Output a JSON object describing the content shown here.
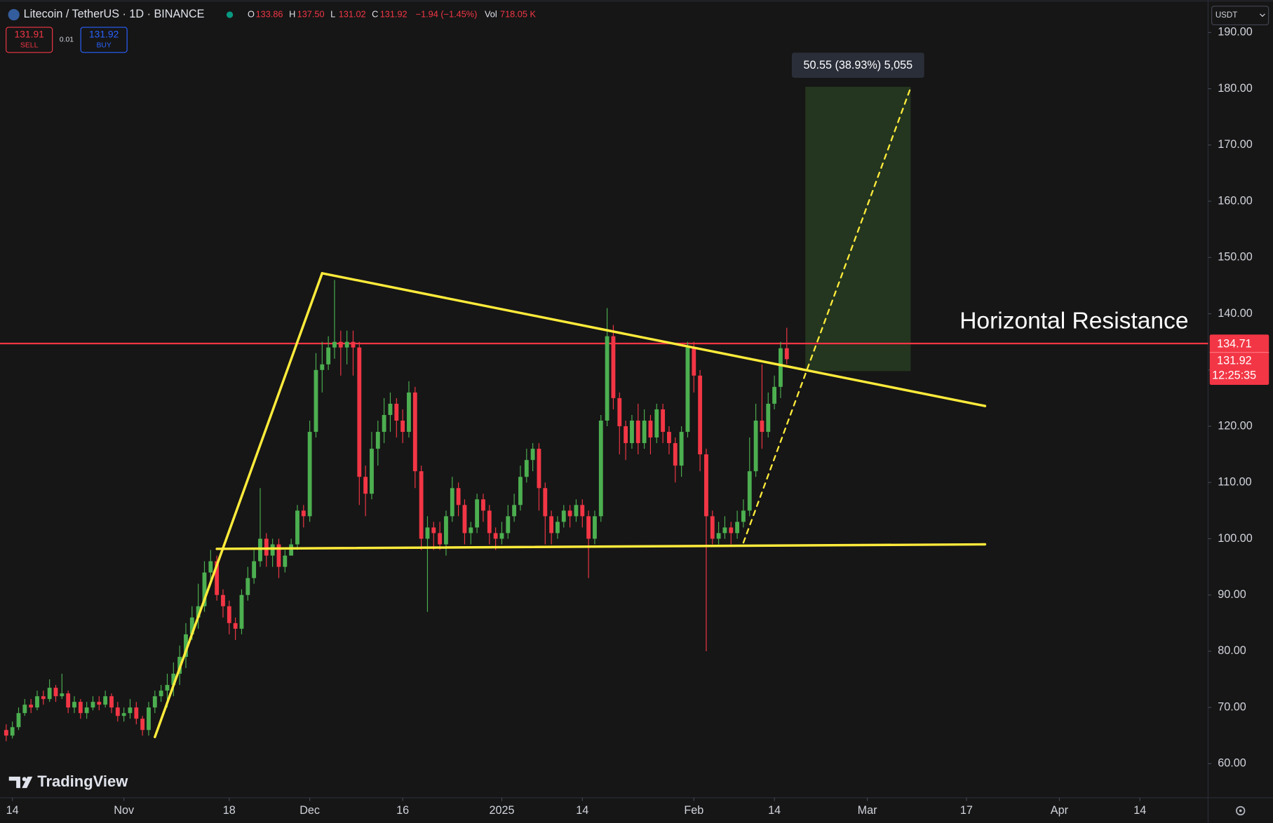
{
  "header": {
    "symbol": "Litecoin / TetherUS · 1D · BINANCE",
    "legend": [
      {
        "key": "O",
        "value": "133.86"
      },
      {
        "key": "H",
        "value": "137.50"
      },
      {
        "key": "L",
        "value": "131.02"
      },
      {
        "key": "C",
        "value": "131.92"
      }
    ],
    "change": "−1.94 (−1.45%)",
    "volume_key": "Vol",
    "volume": "718.05 K"
  },
  "trade": {
    "sell_price": "131.91",
    "sell": "SELL",
    "spread": "0.01",
    "buy_price": "131.92",
    "buy": "BUY"
  },
  "currency": "USDT",
  "countdown": "12:25:35",
  "logo": "TradingView",
  "chart_data": {
    "type": "candlestick",
    "x": [
      "2024-10-13",
      "2024-10-14",
      "2024-10-15",
      "2024-10-16",
      "2024-10-17",
      "2024-10-18",
      "2024-10-19",
      "2024-10-20",
      "2024-10-21",
      "2024-10-22",
      "2024-10-23",
      "2024-10-24",
      "2024-10-25",
      "2024-10-26",
      "2024-10-27",
      "2024-10-28",
      "2024-10-29",
      "2024-10-30",
      "2024-10-31",
      "2024-11-01",
      "2024-11-02",
      "2024-11-03",
      "2024-11-04",
      "2024-11-05",
      "2024-11-06",
      "2024-11-07",
      "2024-11-08",
      "2024-11-09",
      "2024-11-10",
      "2024-11-11",
      "2024-11-12",
      "2024-11-13",
      "2024-11-14",
      "2024-11-15",
      "2024-11-16",
      "2024-11-17",
      "2024-11-18",
      "2024-11-19",
      "2024-11-20",
      "2024-11-21",
      "2024-11-22",
      "2024-11-23",
      "2024-11-24",
      "2024-11-25",
      "2024-11-26",
      "2024-11-27",
      "2024-11-28",
      "2024-11-29",
      "2024-11-30",
      "2024-12-01",
      "2024-12-02",
      "2024-12-03",
      "2024-12-04",
      "2024-12-05",
      "2024-12-06",
      "2024-12-07",
      "2024-12-08",
      "2024-12-09",
      "2024-12-10",
      "2024-12-11",
      "2024-12-12",
      "2024-12-13",
      "2024-12-14",
      "2024-12-15",
      "2024-12-16",
      "2024-12-17",
      "2024-12-18",
      "2024-12-19",
      "2024-12-20",
      "2024-12-21",
      "2024-12-22",
      "2024-12-23",
      "2024-12-24",
      "2024-12-25",
      "2024-12-26",
      "2024-12-27",
      "2024-12-28",
      "2024-12-29",
      "2024-12-30",
      "2024-12-31",
      "2025-01-01",
      "2025-01-02",
      "2025-01-03",
      "2025-01-04",
      "2025-01-05",
      "2025-01-06",
      "2025-01-07",
      "2025-01-08",
      "2025-01-09",
      "2025-01-10",
      "2025-01-11",
      "2025-01-12",
      "2025-01-13",
      "2025-01-14",
      "2025-01-15",
      "2025-01-16",
      "2025-01-17",
      "2025-01-18",
      "2025-01-19",
      "2025-01-20",
      "2025-01-21",
      "2025-01-22",
      "2025-01-23",
      "2025-01-24",
      "2025-01-25",
      "2025-01-26",
      "2025-01-27",
      "2025-01-28",
      "2025-01-29",
      "2025-01-30",
      "2025-01-31",
      "2025-02-01",
      "2025-02-02",
      "2025-02-03",
      "2025-02-04",
      "2025-02-05",
      "2025-02-06",
      "2025-02-07",
      "2025-02-08",
      "2025-02-09",
      "2025-02-10",
      "2025-02-11",
      "2025-02-12",
      "2025-02-13",
      "2025-02-14",
      "2025-02-15",
      "2025-02-16"
    ],
    "open": [
      66,
      65,
      66.5,
      69,
      70.5,
      70,
      72,
      71.5,
      73.5,
      72,
      72.5,
      70,
      71,
      69,
      70,
      71,
      70.5,
      72,
      70,
      68.5,
      69,
      70,
      68,
      66,
      70,
      72,
      73,
      74,
      76,
      79,
      83,
      86,
      88,
      94,
      96,
      90,
      88,
      85,
      84,
      90,
      93,
      96,
      100,
      97,
      99,
      95,
      97,
      99,
      105,
      104,
      119,
      130,
      131,
      134,
      135,
      134,
      135,
      134,
      111,
      108,
      116,
      119,
      122,
      124,
      121,
      119,
      126,
      112,
      100,
      102,
      101,
      99,
      104,
      109,
      106,
      101,
      102,
      107,
      105,
      101,
      100,
      101,
      104,
      106,
      111,
      114,
      116,
      109,
      104,
      101,
      103,
      105,
      104,
      106,
      104,
      100,
      104,
      121,
      136,
      125,
      120,
      117,
      121,
      117,
      121,
      118,
      123,
      119,
      117,
      113,
      119,
      134,
      129,
      115,
      104,
      100,
      101,
      102,
      101,
      103,
      105,
      112,
      121,
      119,
      124,
      127,
      133.86
    ],
    "high": [
      67,
      67.5,
      70,
      71.5,
      71.5,
      73,
      73,
      75,
      74,
      76,
      73,
      72,
      71.5,
      71,
      72,
      72,
      73,
      72.5,
      71,
      70,
      71.5,
      71,
      68.5,
      71,
      73,
      74,
      76,
      78,
      81,
      85,
      88,
      92,
      96,
      98,
      97,
      91,
      89,
      86,
      91,
      95,
      98,
      109,
      101,
      100,
      100,
      98,
      100,
      106,
      106,
      121,
      133,
      135,
      136,
      146,
      137,
      137,
      137,
      135,
      113,
      119,
      121,
      125,
      126,
      125,
      123,
      128,
      127,
      113,
      104,
      103,
      103,
      105,
      111,
      110,
      107,
      103,
      108,
      108,
      106,
      102,
      103,
      106,
      108,
      113,
      116,
      117,
      117,
      110,
      105,
      104,
      106,
      106,
      107,
      107,
      105,
      105,
      122,
      141,
      138,
      126,
      121,
      122,
      124,
      123,
      122,
      124,
      124,
      120,
      118,
      120,
      135,
      135,
      130,
      116,
      105,
      103,
      104,
      103,
      105,
      107,
      118,
      124,
      131,
      126,
      129,
      135,
      137.5
    ],
    "low": [
      64,
      64.5,
      66,
      68.5,
      69,
      69.5,
      70.5,
      71,
      71,
      71.5,
      69,
      69,
      68,
      68,
      69.5,
      69.5,
      70,
      69,
      67.5,
      67.5,
      68,
      67,
      65,
      65,
      69,
      71,
      70,
      72,
      74,
      77,
      82,
      84,
      87,
      92,
      89,
      86,
      83,
      82,
      83,
      89,
      92,
      95,
      95,
      95,
      93,
      94,
      97,
      98,
      102,
      103,
      118,
      126,
      130,
      132,
      129,
      131,
      129,
      106,
      104,
      107,
      113,
      117,
      119,
      118,
      117,
      118,
      109,
      98,
      87,
      98,
      98,
      97,
      103,
      104,
      99,
      99,
      101,
      103,
      99,
      98,
      99,
      100,
      103,
      105,
      110,
      112,
      105,
      99,
      99,
      100,
      102,
      102,
      103,
      102,
      93,
      99,
      103,
      120,
      123,
      115,
      114,
      116,
      115,
      116,
      115,
      117,
      117,
      115,
      110,
      111,
      118,
      126,
      112,
      80,
      99,
      99,
      100,
      99,
      100,
      102,
      104,
      111,
      116,
      118,
      123,
      125,
      131.02
    ],
    "close": [
      65,
      66.5,
      69,
      70.5,
      70,
      72,
      71.5,
      73.5,
      72,
      72.5,
      70,
      71,
      69,
      70,
      71,
      70.5,
      72,
      70,
      68.5,
      69,
      70,
      68,
      66,
      70,
      72,
      73,
      74,
      76,
      79,
      83,
      86,
      88,
      94,
      96,
      90,
      88,
      85,
      84,
      90,
      93,
      96,
      100,
      97,
      99,
      95,
      97,
      99,
      105,
      104,
      119,
      130,
      131,
      134,
      135,
      134,
      135,
      134,
      111,
      108,
      116,
      119,
      122,
      124,
      121,
      119,
      126,
      112,
      100,
      102,
      101,
      99,
      104,
      109,
      106,
      101,
      102,
      107,
      105,
      101,
      100,
      101,
      104,
      106,
      111,
      114,
      116,
      109,
      104,
      101,
      103,
      105,
      104,
      106,
      104,
      100,
      104,
      121,
      136,
      125,
      120,
      117,
      121,
      117,
      121,
      118,
      123,
      119,
      117,
      113,
      119,
      134,
      129,
      115,
      104,
      100,
      101,
      102,
      101,
      103,
      105,
      112,
      121,
      119,
      124,
      127,
      133.86,
      131.92
    ],
    "up_color": "#4caf50",
    "down_color": "#f23645",
    "xlim": [
      "2024-10-12",
      "2025-04-25"
    ],
    "xticks": [
      {
        "value": "2024-10-14",
        "label": "14"
      },
      {
        "value": "2024-11-01",
        "label": "Nov"
      },
      {
        "value": "2024-11-18",
        "label": "18"
      },
      {
        "value": "2024-12-01",
        "label": "Dec"
      },
      {
        "value": "2024-12-16",
        "label": "16"
      },
      {
        "value": "2025-01-01",
        "label": "2025"
      },
      {
        "value": "2025-01-14",
        "label": "14"
      },
      {
        "value": "2025-02-01",
        "label": "Feb"
      },
      {
        "value": "2025-02-14",
        "label": "14"
      },
      {
        "value": "2025-03-01",
        "label": "Mar"
      },
      {
        "value": "2025-03-17",
        "label": "17"
      },
      {
        "value": "2025-04-01",
        "label": "Apr"
      },
      {
        "value": "2025-04-14",
        "label": "14"
      }
    ],
    "ylim": [
      53.95,
      195.76
    ],
    "yticks": [
      {
        "value": 60,
        "label": "60.00"
      },
      {
        "value": 70,
        "label": "70.00"
      },
      {
        "value": 80,
        "label": "80.00"
      },
      {
        "value": 90,
        "label": "90.00"
      },
      {
        "value": 100,
        "label": "100.00"
      },
      {
        "value": 110,
        "label": "110.00"
      },
      {
        "value": 120,
        "label": "120.00"
      },
      {
        "value": 130,
        "label": "130.00"
      },
      {
        "value": 140,
        "label": "140.00"
      },
      {
        "value": 150,
        "label": "150.00"
      },
      {
        "value": 160,
        "label": "160.00"
      },
      {
        "value": 170,
        "label": "170.00"
      },
      {
        "value": 180,
        "label": "180.00"
      },
      {
        "value": 190,
        "label": "190.00"
      }
    ],
    "resistance": {
      "value": 134.71,
      "label": "Horizontal Resistance",
      "color": "#f23645"
    },
    "trendlines": [
      {
        "points": [
          [
            "2024-11-06",
            64.75
          ],
          [
            "2024-12-03",
            147.2
          ]
        ],
        "color": "#ffeb3b",
        "dashed": false
      },
      {
        "points": [
          [
            "2024-12-03",
            147.2
          ],
          [
            "2025-03-20",
            123.6
          ]
        ],
        "color": "#ffeb3b",
        "dashed": false
      },
      {
        "points": [
          [
            "2024-11-16",
            98.2
          ],
          [
            "2025-03-20",
            99.0
          ]
        ],
        "color": "#ffeb3b",
        "dashed": false
      },
      {
        "points": [
          [
            "2025-02-09",
            99.3
          ],
          [
            "2025-03-08",
            180.2
          ]
        ],
        "color": "#ffeb3b",
        "dashed": true
      }
    ],
    "projection": {
      "x": [
        "2025-02-19",
        "2025-03-08"
      ],
      "y": [
        129.8,
        180.35
      ],
      "color": "#24361f",
      "label": "50.55 (38.93%) 5,055"
    }
  }
}
